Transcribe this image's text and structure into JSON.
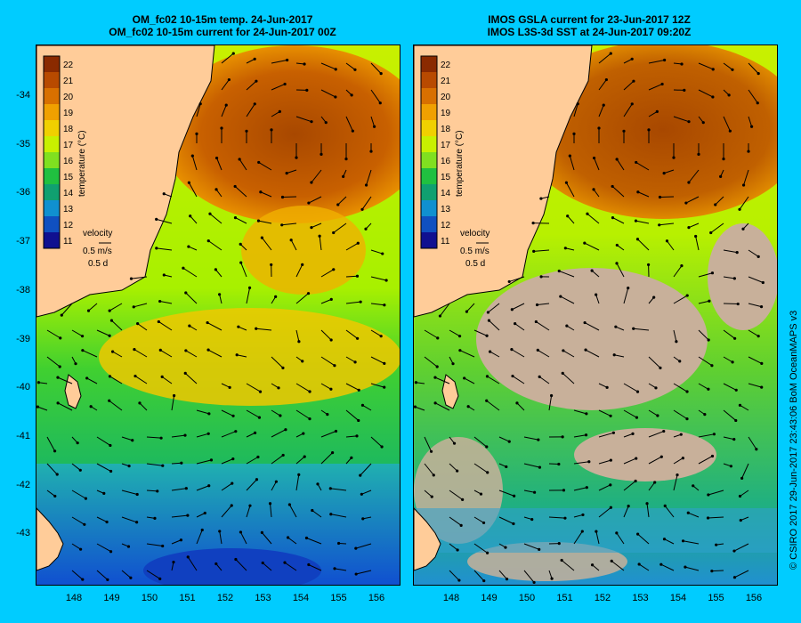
{
  "left": {
    "title_line1": "OM_fc02 10-15m temp. 24-Jun-2017",
    "title_line2": "OM_fc02 10-15m current for 24-Jun-2017 00Z"
  },
  "right": {
    "title_line1": "IMOS GSLA current for 23-Jun-2017 12Z",
    "title_line2": "IMOS L3S-3d SST at 24-Jun-2017 09:20Z"
  },
  "axes": {
    "lat_ticks": [
      "-34",
      "-35",
      "-36",
      "-37",
      "-38",
      "-39",
      "-40",
      "-41",
      "-42",
      "-43"
    ],
    "lon_ticks": [
      "148",
      "149",
      "150",
      "151",
      "152",
      "153",
      "154",
      "155",
      "156"
    ]
  },
  "colorbar": {
    "ticks": [
      "22",
      "21",
      "20",
      "19",
      "18",
      "17",
      "16",
      "15",
      "14",
      "13",
      "12",
      "11"
    ],
    "label": "temperature (°C)",
    "colors": [
      "#8a2a00",
      "#b84a00",
      "#d87000",
      "#f0a000",
      "#f0d000",
      "#c8f000",
      "#80e020",
      "#20c040",
      "#10a070",
      "#1090d0",
      "#1050c0",
      "#101090"
    ]
  },
  "velocity_legend": {
    "title": "velocity",
    "speed": "0.5 m/s",
    "duration": "0.5 d"
  },
  "credit": "© CSIRO 2017  29-Jun-2017 23:43:06 BoM OceanMAPS v3",
  "colors": {
    "background": "#00ccff",
    "land": "#ffcc99",
    "no_data": "#c8b09a"
  }
}
